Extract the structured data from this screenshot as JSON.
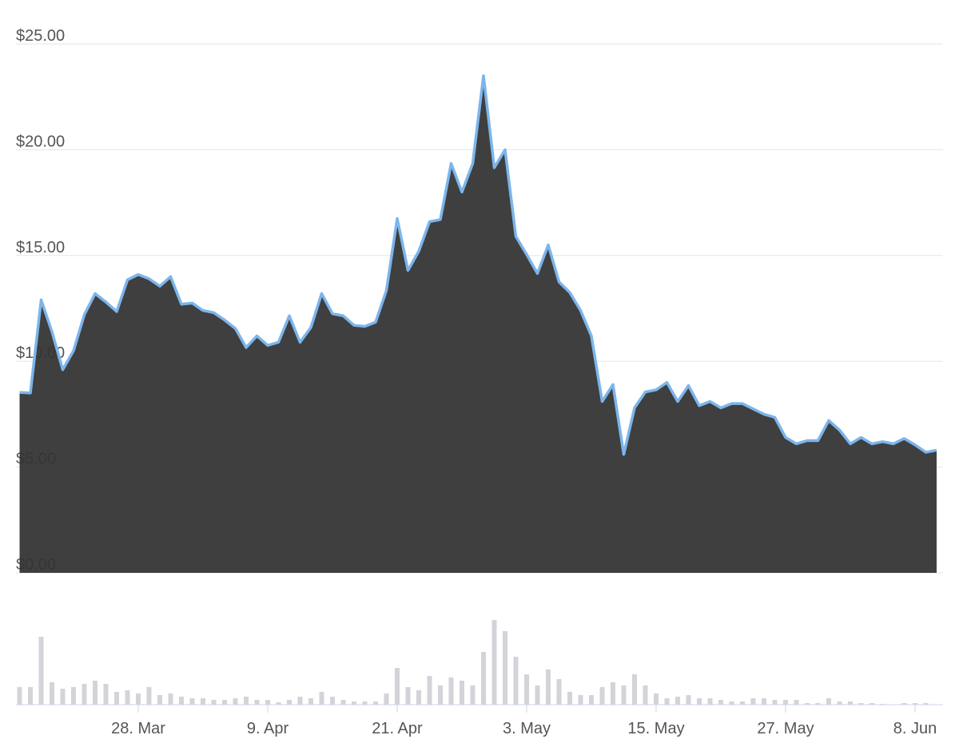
{
  "chart_data": [
    {
      "type": "area",
      "values": [
        8.53,
        8.5,
        12.9,
        11.4,
        9.6,
        10.5,
        12.2,
        13.2,
        12.8,
        12.35,
        13.85,
        14.1,
        13.9,
        13.55,
        14.0,
        12.7,
        12.75,
        12.4,
        12.3,
        11.95,
        11.55,
        10.65,
        11.2,
        10.75,
        10.9,
        12.15,
        10.9,
        11.6,
        13.2,
        12.25,
        12.15,
        11.7,
        11.65,
        11.85,
        13.35,
        16.75,
        14.3,
        15.2,
        16.6,
        16.7,
        19.35,
        18.0,
        19.35,
        23.5,
        19.15,
        20.0,
        15.9,
        15.05,
        14.15,
        15.5,
        13.75,
        13.25,
        12.4,
        11.2,
        8.1,
        8.9,
        5.6,
        7.8,
        8.55,
        8.65,
        9.0,
        8.1,
        8.85,
        7.9,
        8.1,
        7.8,
        8.0,
        8.0,
        7.75,
        7.5,
        7.35,
        6.4,
        6.1,
        6.25,
        6.25,
        7.2,
        6.75,
        6.1,
        6.4,
        6.1,
        6.2,
        6.1,
        6.35,
        6.05,
        5.7,
        5.8
      ],
      "color": "#7cb5ec",
      "fill": "#333333",
      "ylim": [
        0,
        25
      ],
      "yticks": [
        {
          "value": 0,
          "label": "$0.00"
        },
        {
          "value": 5,
          "label": "$5.00"
        },
        {
          "value": 10,
          "label": "$10.00"
        },
        {
          "value": 15,
          "label": "$15.00"
        },
        {
          "value": 20,
          "label": "$20.00"
        },
        {
          "value": 25,
          "label": "$25.00"
        }
      ],
      "grid": true
    },
    {
      "type": "bar",
      "categories": [
        null,
        null,
        null,
        null,
        null,
        null,
        null,
        null,
        null,
        null,
        null,
        "28. Mar",
        null,
        null,
        null,
        null,
        null,
        null,
        null,
        null,
        null,
        null,
        null,
        "9. Apr",
        null,
        null,
        null,
        null,
        null,
        null,
        null,
        null,
        null,
        null,
        null,
        "21. Apr",
        null,
        null,
        null,
        null,
        null,
        null,
        null,
        null,
        null,
        null,
        null,
        "3. May",
        null,
        null,
        null,
        null,
        null,
        null,
        null,
        null,
        null,
        null,
        null,
        "15. May",
        null,
        null,
        null,
        null,
        null,
        null,
        null,
        null,
        null,
        null,
        null,
        "27. May",
        null,
        null,
        null,
        null,
        null,
        null,
        null,
        null,
        null,
        null,
        null,
        "8. Jun",
        null,
        null
      ],
      "values": [
        22,
        22,
        85,
        28,
        20,
        22,
        26,
        30,
        26,
        16,
        18,
        14,
        22,
        12,
        14,
        10,
        8,
        8,
        6,
        6,
        8,
        10,
        6,
        6,
        3,
        6,
        10,
        8,
        16,
        10,
        6,
        4,
        4,
        4,
        14,
        46,
        22,
        18,
        36,
        24,
        34,
        30,
        24,
        66,
        106,
        92,
        60,
        38,
        24,
        44,
        32,
        16,
        12,
        12,
        22,
        28,
        24,
        38,
        24,
        14,
        8,
        10,
        12,
        8,
        8,
        6,
        4,
        4,
        8,
        8,
        6,
        6,
        6,
        2,
        2,
        8,
        4,
        4,
        2,
        2,
        1,
        0,
        2,
        2,
        2,
        0
      ],
      "color": "#d3d3da",
      "ylim": [
        0,
        110
      ]
    }
  ]
}
